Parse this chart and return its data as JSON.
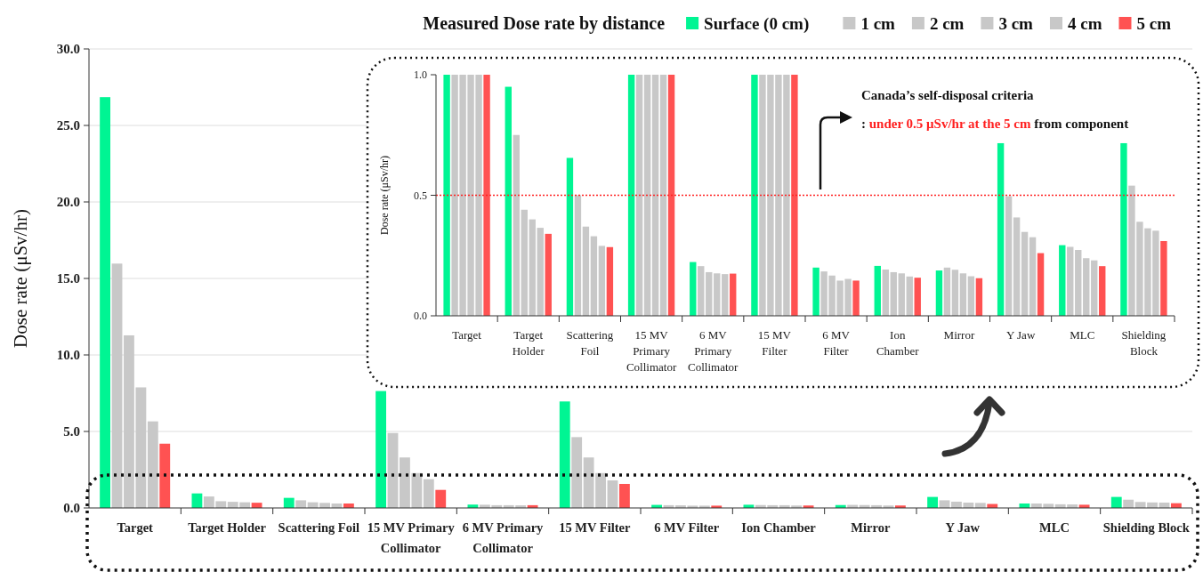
{
  "chart_data": [
    {
      "type": "bar",
      "legend_title": "Measured Dose rate by distance",
      "ylabel": "Dose rate (μSv/hr)",
      "categories": [
        "Target",
        "Target Holder",
        "Scattering Foil",
        "15 MV Primary Collimator",
        "6 MV Primary Collimator",
        "15 MV Filter",
        "6 MV Filter",
        "Ion Chamber",
        "Mirror",
        "Y Jaw",
        "MLC",
        "Shielding Block"
      ],
      "series": [
        {
          "name": "Surface (0 cm)",
          "color": "#00f593",
          "values": [
            26.85,
            0.95,
            0.66,
            7.64,
            0.22,
            6.96,
            0.2,
            0.21,
            0.19,
            0.72,
            0.29,
            0.72
          ]
        },
        {
          "name": "1 cm",
          "color": "#c8c8c8",
          "values": [
            15.97,
            0.75,
            0.5,
            4.9,
            0.21,
            4.63,
            0.18,
            0.19,
            0.2,
            0.5,
            0.29,
            0.54
          ]
        },
        {
          "name": "2 cm",
          "color": "#c8c8c8",
          "values": [
            11.28,
            0.44,
            0.37,
            3.3,
            0.18,
            3.3,
            0.17,
            0.18,
            0.19,
            0.41,
            0.27,
            0.39
          ]
        },
        {
          "name": "3 cm",
          "color": "#c8c8c8",
          "values": [
            7.88,
            0.4,
            0.33,
            2.28,
            0.18,
            2.28,
            0.15,
            0.18,
            0.18,
            0.35,
            0.24,
            0.36
          ]
        },
        {
          "name": "4 cm",
          "color": "#c8c8c8",
          "values": [
            5.66,
            0.37,
            0.29,
            1.88,
            0.17,
            1.8,
            0.15,
            0.16,
            0.16,
            0.33,
            0.23,
            0.35
          ]
        },
        {
          "name": "5 cm",
          "color": "#ff5252",
          "values": [
            4.2,
            0.34,
            0.29,
            1.18,
            0.18,
            1.57,
            0.15,
            0.16,
            0.16,
            0.26,
            0.21,
            0.31
          ]
        }
      ],
      "ylim": [
        0,
        30
      ],
      "yticks": [
        {
          "value": 0,
          "label": "0.0"
        },
        {
          "value": 5,
          "label": "5.0"
        },
        {
          "value": 10,
          "label": "10.0"
        },
        {
          "value": 15,
          "label": "15.0"
        },
        {
          "value": 20,
          "label": "20.0"
        },
        {
          "value": 25,
          "label": "25.0"
        },
        {
          "value": 30,
          "label": "30.0"
        }
      ],
      "grid": "y",
      "legend": "top right"
    },
    {
      "type": "bar",
      "ylabel": "Dose rate (μSv/hr)",
      "categories": [
        "Target",
        "Target Holder",
        "Scattering Foil",
        "15 MV Primary Collimator",
        "6 MV Primary Collimator",
        "15 MV Filter",
        "6 MV Filter",
        "Ion Chamber",
        "Mirror",
        "Y Jaw",
        "MLC",
        "Shielding Block"
      ],
      "series": [
        {
          "color": "#00f593",
          "values": [
            1.0,
            0.95,
            0.655,
            1.0,
            0.223,
            1.0,
            0.2,
            0.207,
            0.188,
            0.716,
            0.293,
            0.716
          ]
        },
        {
          "color": "#c8c8c8",
          "values": [
            1.0,
            0.75,
            0.5,
            1.0,
            0.206,
            1.0,
            0.184,
            0.192,
            0.2,
            0.496,
            0.286,
            0.54
          ]
        },
        {
          "color": "#c8c8c8",
          "values": [
            1.0,
            0.44,
            0.37,
            1.0,
            0.181,
            1.0,
            0.167,
            0.181,
            0.191,
            0.408,
            0.273,
            0.39
          ]
        },
        {
          "color": "#c8c8c8",
          "values": [
            1.0,
            0.4,
            0.33,
            1.0,
            0.176,
            1.0,
            0.146,
            0.176,
            0.176,
            0.348,
            0.239,
            0.363
          ]
        },
        {
          "color": "#c8c8c8",
          "values": [
            1.0,
            0.365,
            0.29,
            1.0,
            0.173,
            1.0,
            0.153,
            0.163,
            0.164,
            0.326,
            0.23,
            0.353
          ]
        },
        {
          "color": "#ff5252",
          "values": [
            1.0,
            0.34,
            0.285,
            1.0,
            0.175,
            1.0,
            0.146,
            0.158,
            0.156,
            0.26,
            0.206,
            0.31
          ]
        }
      ],
      "ylim": [
        0,
        1
      ],
      "yticks": [
        {
          "value": 0,
          "label": "0.0"
        },
        {
          "value": 0.5,
          "label": "0.5"
        },
        {
          "value": 1,
          "label": "1.0"
        }
      ],
      "ref_lines": [
        {
          "axis": "y",
          "value": 0.5,
          "color": "#ff2020",
          "line_style": "dotted"
        }
      ],
      "annotations": [
        "Canada’s self-disposal criteria",
        ":",
        "under 0.5 μSv/hr at the 5 cm",
        "from component"
      ]
    }
  ]
}
